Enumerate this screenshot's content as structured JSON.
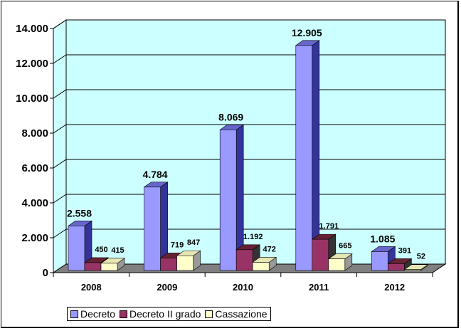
{
  "chart_data": {
    "type": "bar",
    "categories": [
      "2008",
      "2009",
      "2010",
      "2011",
      "2012"
    ],
    "series": [
      {
        "name": "Decreto",
        "values": [
          2558,
          4784,
          8069,
          12905,
          1085
        ],
        "labels": [
          "2.558",
          "4.784",
          "8.069",
          "12.905",
          "1.085"
        ],
        "color": "#9999ff",
        "side": "#333399",
        "top": "#6666cc"
      },
      {
        "name": "Decreto II grado",
        "values": [
          450,
          719,
          1192,
          1791,
          391
        ],
        "labels": [
          "450",
          "719",
          "1.192",
          "1.791",
          "391"
        ],
        "color": "#993366",
        "side": "#333333",
        "top": "#662233"
      },
      {
        "name": "Cassazione",
        "values": [
          415,
          847,
          472,
          665,
          52
        ],
        "labels": [
          "415",
          "847",
          "472",
          "665",
          "52"
        ],
        "color": "#ffffcc",
        "side": "#999999",
        "top": "#e6e6b3"
      }
    ],
    "ylim": [
      0,
      14000
    ],
    "yticks": [
      0,
      2000,
      4000,
      6000,
      8000,
      10000,
      12000,
      14000
    ],
    "ytick_labels": [
      "0",
      "2.000",
      "4.000",
      "6.000",
      "8.000",
      "10.000",
      "12.000",
      "14.000"
    ],
    "wall_color": "#ccffff",
    "floor_color": "#808080",
    "grid": true,
    "legend_position": "bottom"
  }
}
